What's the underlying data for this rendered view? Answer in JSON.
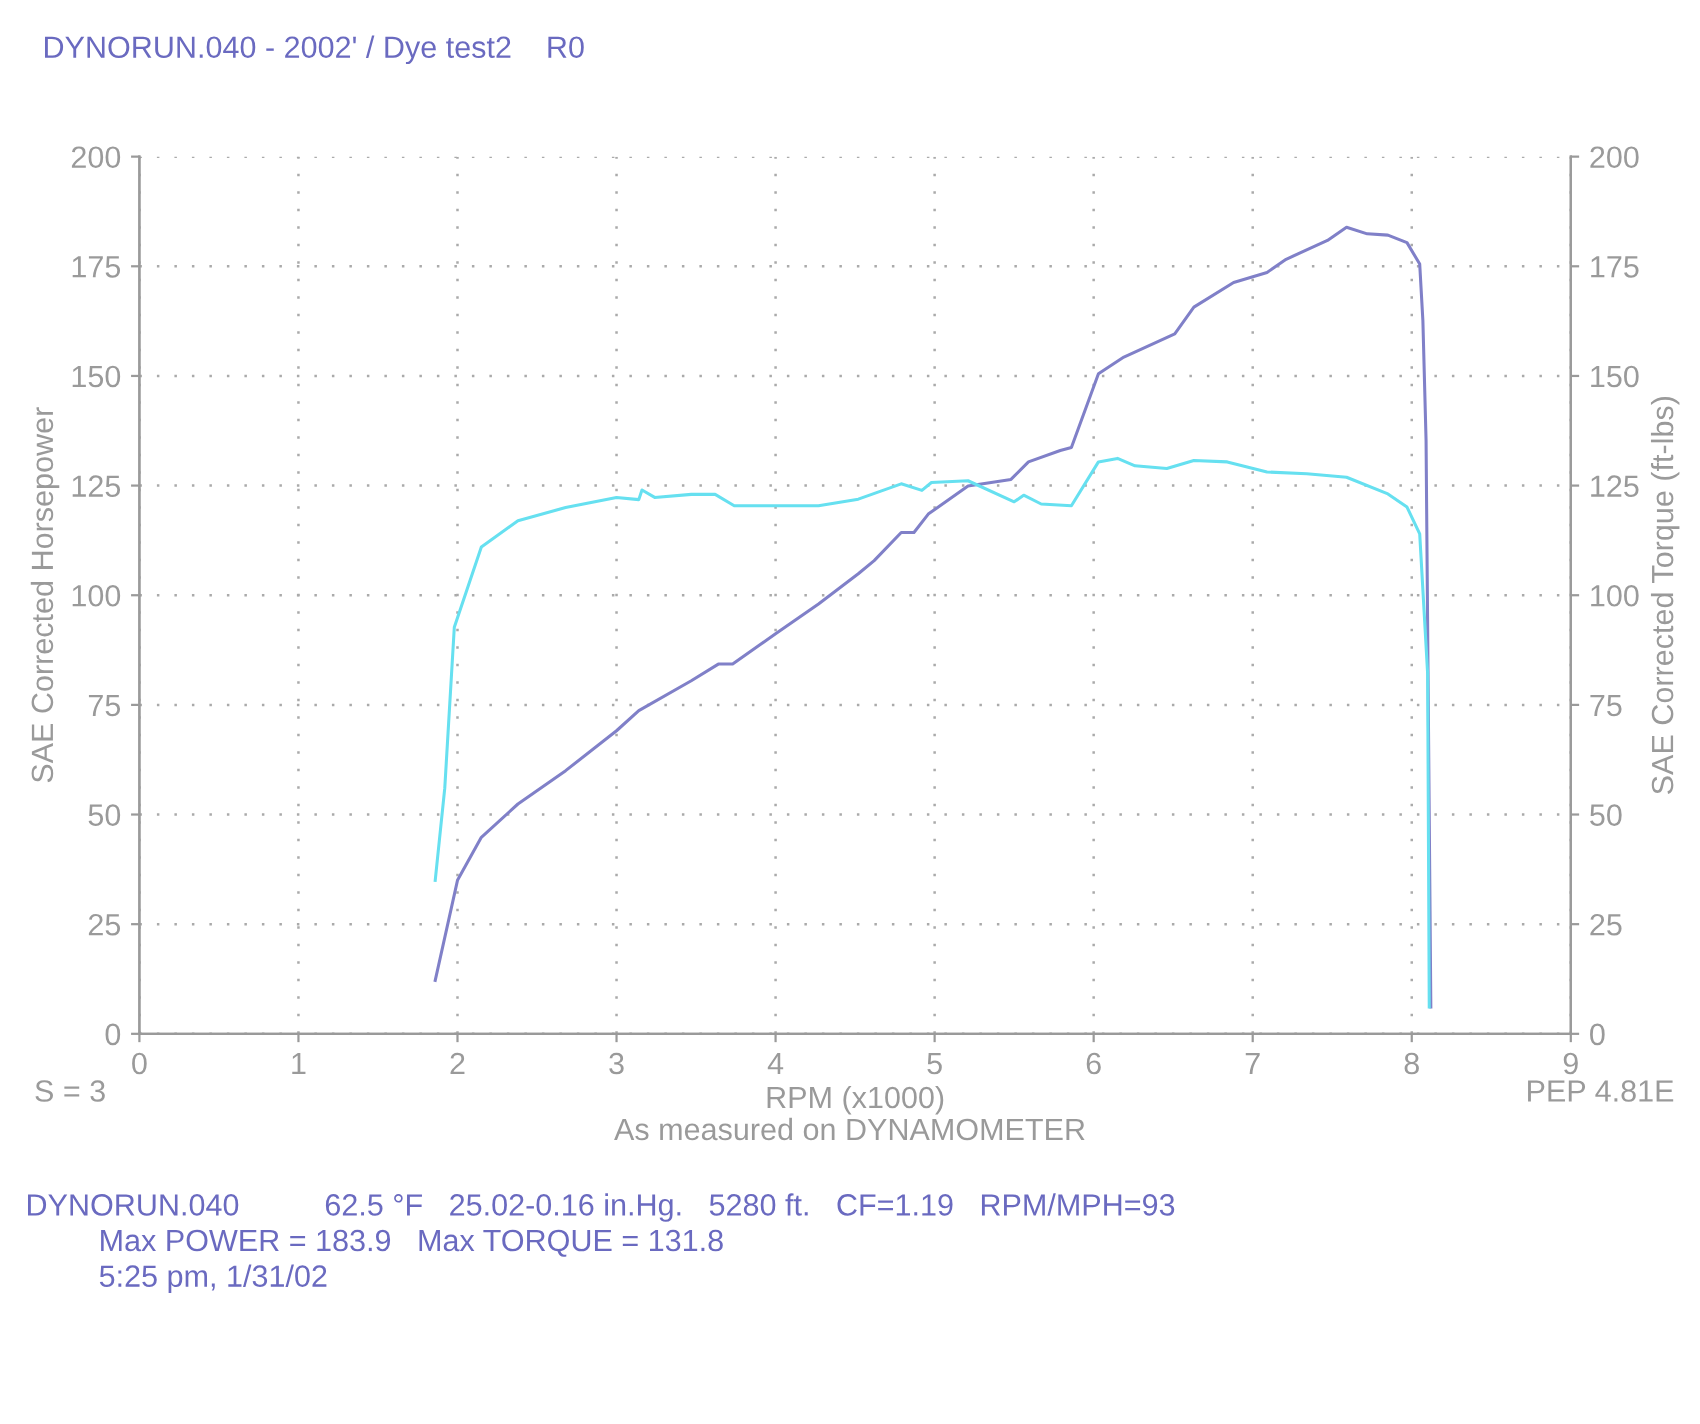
{
  "chart_data": {
    "type": "line",
    "title": "DYNORUN.040 - 2002' / Dye test2    R0",
    "xlabel": "RPM (x1000)",
    "ylabel": "SAE Corrected Horsepower",
    "y2label": "SAE Corrected Torque (ft-lbs)",
    "xlim": [
      0,
      9
    ],
    "xticks": [
      0,
      1,
      2,
      3,
      4,
      5,
      6,
      7,
      8,
      9
    ],
    "ylim": [
      0,
      200
    ],
    "yticks": [
      0,
      25,
      50,
      75,
      100,
      125,
      150,
      175,
      200
    ],
    "y2lim": [
      0,
      200
    ],
    "y2ticks": [
      0,
      25,
      50,
      75,
      100,
      125,
      150,
      175,
      200
    ],
    "grid": true,
    "line_style": "solid",
    "series": [
      {
        "color": "#8080c8",
        "axis": "y",
        "x": [
          1.86,
          2.0,
          2.15,
          2.38,
          2.68,
          3.0,
          3.14,
          3.47,
          3.64,
          3.73,
          4.0,
          4.27,
          4.52,
          4.62,
          4.79,
          4.87,
          4.96,
          5.21,
          5.48,
          5.59,
          5.79,
          5.86,
          6.03,
          6.19,
          6.51,
          6.63,
          6.88,
          7.09,
          7.21,
          7.47,
          7.59,
          7.72,
          7.85,
          7.97,
          8.05,
          8.07,
          8.09,
          8.12
        ],
        "values": [
          12.2,
          35,
          44.8,
          52.4,
          60,
          69.1,
          73.7,
          80.5,
          84.3,
          84.3,
          91.2,
          98,
          104.9,
          107.9,
          114.3,
          114.3,
          118.5,
          124.9,
          126.4,
          130.4,
          133,
          133.7,
          150.5,
          154.3,
          159.6,
          165.7,
          171.3,
          173.6,
          176.6,
          180.9,
          183.9,
          182.4,
          182.1,
          180.4,
          175.5,
          162.6,
          135.3,
          6.1
        ]
      },
      {
        "color": "#66e0f0",
        "axis": "y2",
        "x": [
          1.86,
          1.92,
          1.98,
          2.15,
          2.38,
          2.68,
          3.0,
          3.14,
          3.16,
          3.24,
          3.47,
          3.62,
          3.74,
          4.0,
          4.27,
          4.52,
          4.79,
          4.92,
          4.98,
          5.21,
          5.5,
          5.56,
          5.67,
          5.86,
          6.03,
          6.15,
          6.26,
          6.46,
          6.63,
          6.84,
          7.09,
          7.34,
          7.59,
          7.85,
          7.97,
          8.05,
          8.1,
          8.11
        ],
        "values": [
          35,
          56,
          92.7,
          111,
          117,
          120,
          122.3,
          121.8,
          124,
          122.3,
          123,
          123,
          120.4,
          120.4,
          120.4,
          121.9,
          125.4,
          123.9,
          125.7,
          126.1,
          121.3,
          122.8,
          120.8,
          120.4,
          130.4,
          131.2,
          129.5,
          128.9,
          130.7,
          130.4,
          128.1,
          127.7,
          126.9,
          123.1,
          120.1,
          114,
          82,
          6.1
        ]
      }
    ],
    "annotations": [
      "S = 3",
      "PEP 4.81E",
      "As measured on DYNAMOMETER",
      "DYNORUN.040          62.5 °F   25.02-0.16 in.Hg.   5280 ft.   CF=1.19   RPM/MPH=93",
      "Max POWER = 183.9   Max TORQUE = 131.8",
      "5:25 pm, 1/31/02"
    ]
  }
}
